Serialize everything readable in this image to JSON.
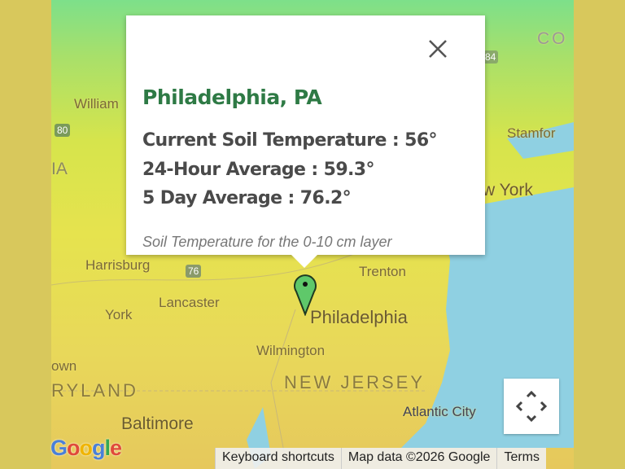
{
  "popup": {
    "title": "Philadelphia, PA",
    "current": "Current Soil Temperature : 56°",
    "avg24": "24-Hour Average : 59.3°",
    "avg5": "5 Day Average : 76.2°",
    "note": "Soil Temperature for the 0-10 cm layer",
    "title_color": "#2e7a45"
  },
  "map": {
    "labels": {
      "williamsport": "William",
      "harrisburg": "Harrisburg",
      "york": "York",
      "lancaster": "Lancaster",
      "trenton": "Trenton",
      "philadelphia": "Philadelphia",
      "wilmington": "Wilmington",
      "new_jersey": "NEW JERSEY",
      "maryland": "RYLAND",
      "baltimore": "Baltimore",
      "atlantic_city": "Atlantic City",
      "stamford": "Stamfor",
      "new_york": "w York",
      "connecticut": "CO",
      "pennsylvania": "IA",
      "town": "own",
      "i80": "80",
      "i76": "76",
      "i84": "84"
    },
    "water_color": "#8fd0e2"
  },
  "footer": {
    "logo": "Google",
    "keyboard": "Keyboard shortcuts",
    "mapdata": "Map data ©2026 Google",
    "terms": "Terms"
  }
}
